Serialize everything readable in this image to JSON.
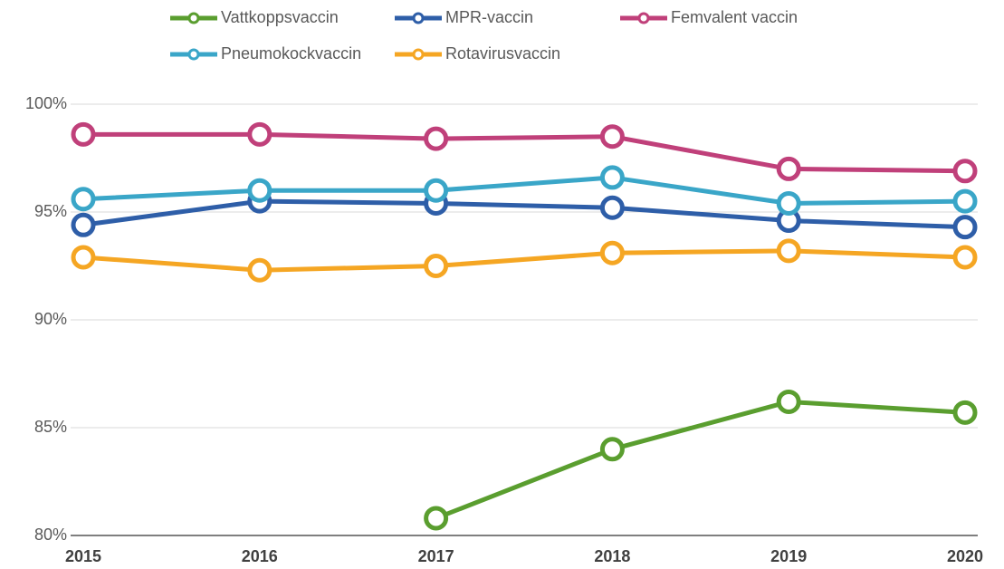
{
  "chart_data": {
    "type": "line",
    "categories": [
      "2015",
      "2016",
      "2017",
      "2018",
      "2019",
      "2020"
    ],
    "series": [
      {
        "name": "Vattkoppsvaccin",
        "color": "#5a9e2f",
        "values": [
          null,
          null,
          80.8,
          84.0,
          86.2,
          85.7
        ]
      },
      {
        "name": "MPR-vaccin",
        "color": "#2e5ea8",
        "values": [
          94.4,
          95.5,
          95.4,
          95.2,
          94.6,
          94.3
        ]
      },
      {
        "name": "Femvalent vaccin",
        "color": "#c0407a",
        "values": [
          98.6,
          98.6,
          98.4,
          98.5,
          97.0,
          96.9
        ]
      },
      {
        "name": "Pneumokockvaccin",
        "color": "#3aa6c8",
        "values": [
          95.6,
          96.0,
          96.0,
          96.6,
          95.4,
          95.5
        ]
      },
      {
        "name": "Rotavirusvaccin",
        "color": "#f5a623",
        "values": [
          92.9,
          92.3,
          92.5,
          93.1,
          93.2,
          92.9
        ]
      }
    ],
    "ylim": [
      80,
      100
    ],
    "yticks": [
      {
        "value": 80,
        "label": "80%"
      },
      {
        "value": 85,
        "label": "85%"
      },
      {
        "value": 90,
        "label": "90%"
      },
      {
        "value": 95,
        "label": "95%"
      },
      {
        "value": 100,
        "label": "100%"
      }
    ],
    "grid": true,
    "legend": "top"
  }
}
